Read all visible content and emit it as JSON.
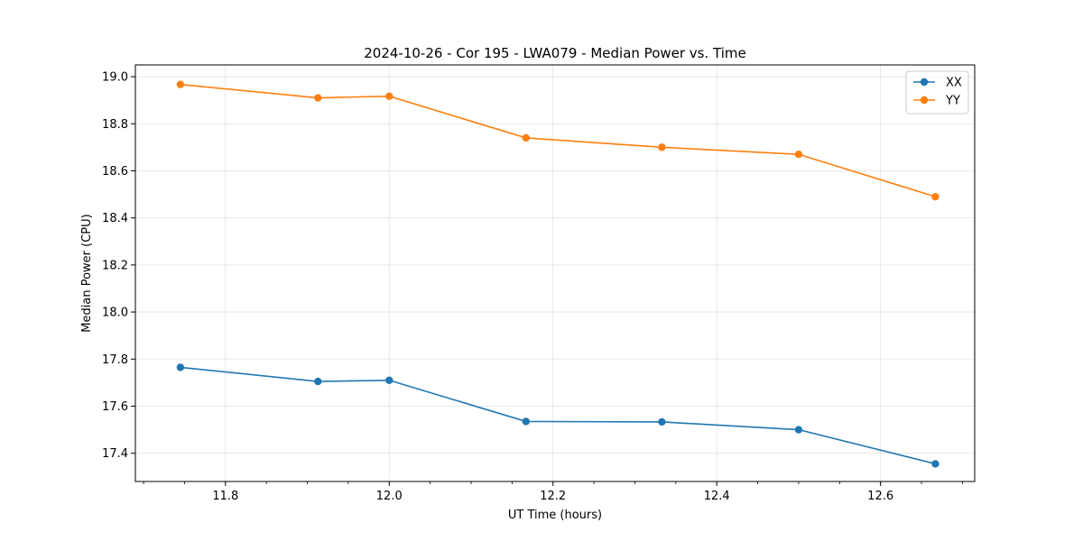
{
  "chart_data": {
    "type": "line",
    "title": "2024-10-26 - Cor 195 - LWA079 - Median Power vs. Time",
    "xlabel": "UT Time (hours)",
    "ylabel": "Median Power (CPU)",
    "xlim": [
      11.69,
      12.715
    ],
    "ylim": [
      17.28,
      19.05
    ],
    "xticks": [
      11.8,
      12.0,
      12.2,
      12.4,
      12.6
    ],
    "xtick_labels": [
      "11.8",
      "12.0",
      "12.2",
      "12.4",
      "12.6"
    ],
    "yticks": [
      17.4,
      17.6,
      17.8,
      18.0,
      18.2,
      18.4,
      18.6,
      18.8,
      19.0
    ],
    "ytick_labels": [
      "17.4",
      "17.6",
      "17.8",
      "18.0",
      "18.2",
      "18.4",
      "18.6",
      "18.8",
      "19.0"
    ],
    "x": [
      11.745,
      11.913,
      12.0,
      12.167,
      12.333,
      12.5,
      12.667
    ],
    "series": [
      {
        "name": "XX",
        "color": "#1f77b4",
        "values": [
          17.765,
          17.705,
          17.71,
          17.535,
          17.533,
          17.5,
          17.355
        ]
      },
      {
        "name": "YY",
        "color": "#ff7f0e",
        "values": [
          18.967,
          18.91,
          18.917,
          18.74,
          18.7,
          18.67,
          18.49
        ]
      }
    ],
    "grid": true,
    "legend_position": "top-right"
  }
}
